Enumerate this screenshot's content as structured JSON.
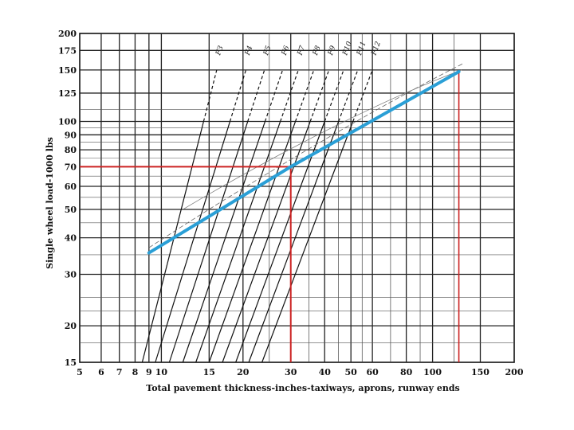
{
  "chart_data": {
    "type": "line",
    "title": "",
    "xlabel": "Total pavement thickness-inches-taxiways, aprons, runway ends",
    "ylabel": "Single wheel load-1000 lbs",
    "x_scale": "log",
    "y_scale": "log",
    "xlim": [
      5,
      200
    ],
    "ylim": [
      15,
      200
    ],
    "x_ticks": [
      5,
      6,
      7,
      8,
      9,
      10,
      15,
      20,
      30,
      40,
      50,
      60,
      80,
      100,
      150,
      200
    ],
    "x_tick_labels": [
      "5",
      "6",
      "7",
      "8",
      "9",
      "10",
      "15",
      "20",
      "30",
      "40",
      "50",
      "60",
      "80",
      "100",
      "150",
      "200"
    ],
    "y_ticks": [
      15,
      20,
      30,
      40,
      50,
      60,
      70,
      80,
      90,
      100,
      125,
      150,
      175,
      200
    ],
    "y_tick_labels": [
      "15",
      "20",
      "30",
      "40",
      "50",
      "60",
      "70",
      "80",
      "90",
      "100",
      "125",
      "150",
      "175",
      "200"
    ],
    "grid": true,
    "cbr_curves": {
      "labels": [
        "3",
        "4",
        "5",
        "6",
        "7",
        "8",
        "9",
        "10",
        "11",
        "12"
      ],
      "label_prefix": "F",
      "x_at_15k": [
        8.5,
        9.5,
        10.7,
        12.0,
        13.4,
        15.0,
        16.8,
        18.8,
        21.0,
        23.5
      ],
      "x_at_150k": [
        16.0,
        20.5,
        24.0,
        28.0,
        32.0,
        36.5,
        41.5,
        47.0,
        53.0,
        60.0
      ]
    },
    "series": [
      {
        "role": "design line",
        "color": "#2a9fd6",
        "points": [
          [
            9,
            35.5
          ],
          [
            30,
            70
          ],
          [
            125,
            148
          ]
        ]
      }
    ],
    "annotations": [
      {
        "type": "reference-lines",
        "color": "#cc2222",
        "load": 70,
        "thickness": 30
      },
      {
        "type": "reference-line",
        "color": "#cc2222",
        "thickness": 125
      }
    ]
  }
}
